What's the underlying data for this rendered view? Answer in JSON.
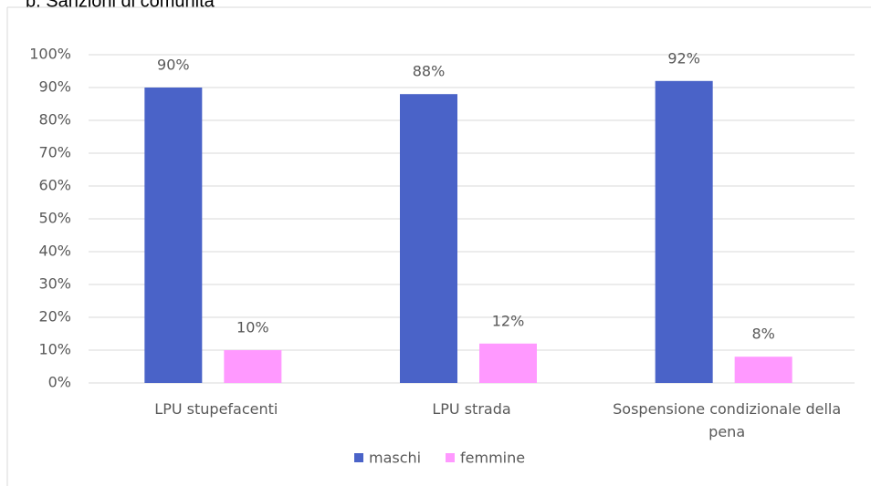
{
  "chart_data": {
    "type": "bar",
    "title": "b. Sanzioni di comunità",
    "categories": [
      "LPU stupefacenti",
      "LPU strada",
      "Sospensione condizionale della pena"
    ],
    "series": [
      {
        "name": "maschi",
        "color": "#4a63c8",
        "values": [
          90,
          88,
          92
        ],
        "value_labels": [
          "90%",
          "88%",
          "92%"
        ]
      },
      {
        "name": "femmine",
        "color": "#ff99ff",
        "values": [
          10,
          12,
          8
        ],
        "value_labels": [
          "10%",
          "12%",
          "8%"
        ]
      }
    ],
    "ylim": [
      0,
      100
    ],
    "yticks": [
      {
        "value": 0,
        "label": "0%"
      },
      {
        "value": 10,
        "label": "10%"
      },
      {
        "value": 20,
        "label": "20%"
      },
      {
        "value": 30,
        "label": "30%"
      },
      {
        "value": 40,
        "label": "40%"
      },
      {
        "value": 50,
        "label": "50%"
      },
      {
        "value": 60,
        "label": "60%"
      },
      {
        "value": 70,
        "label": "70%"
      },
      {
        "value": 80,
        "label": "80%"
      },
      {
        "value": 90,
        "label": "90%"
      },
      {
        "value": 100,
        "label": "100%"
      }
    ],
    "grid": true,
    "legend": "bottom"
  }
}
